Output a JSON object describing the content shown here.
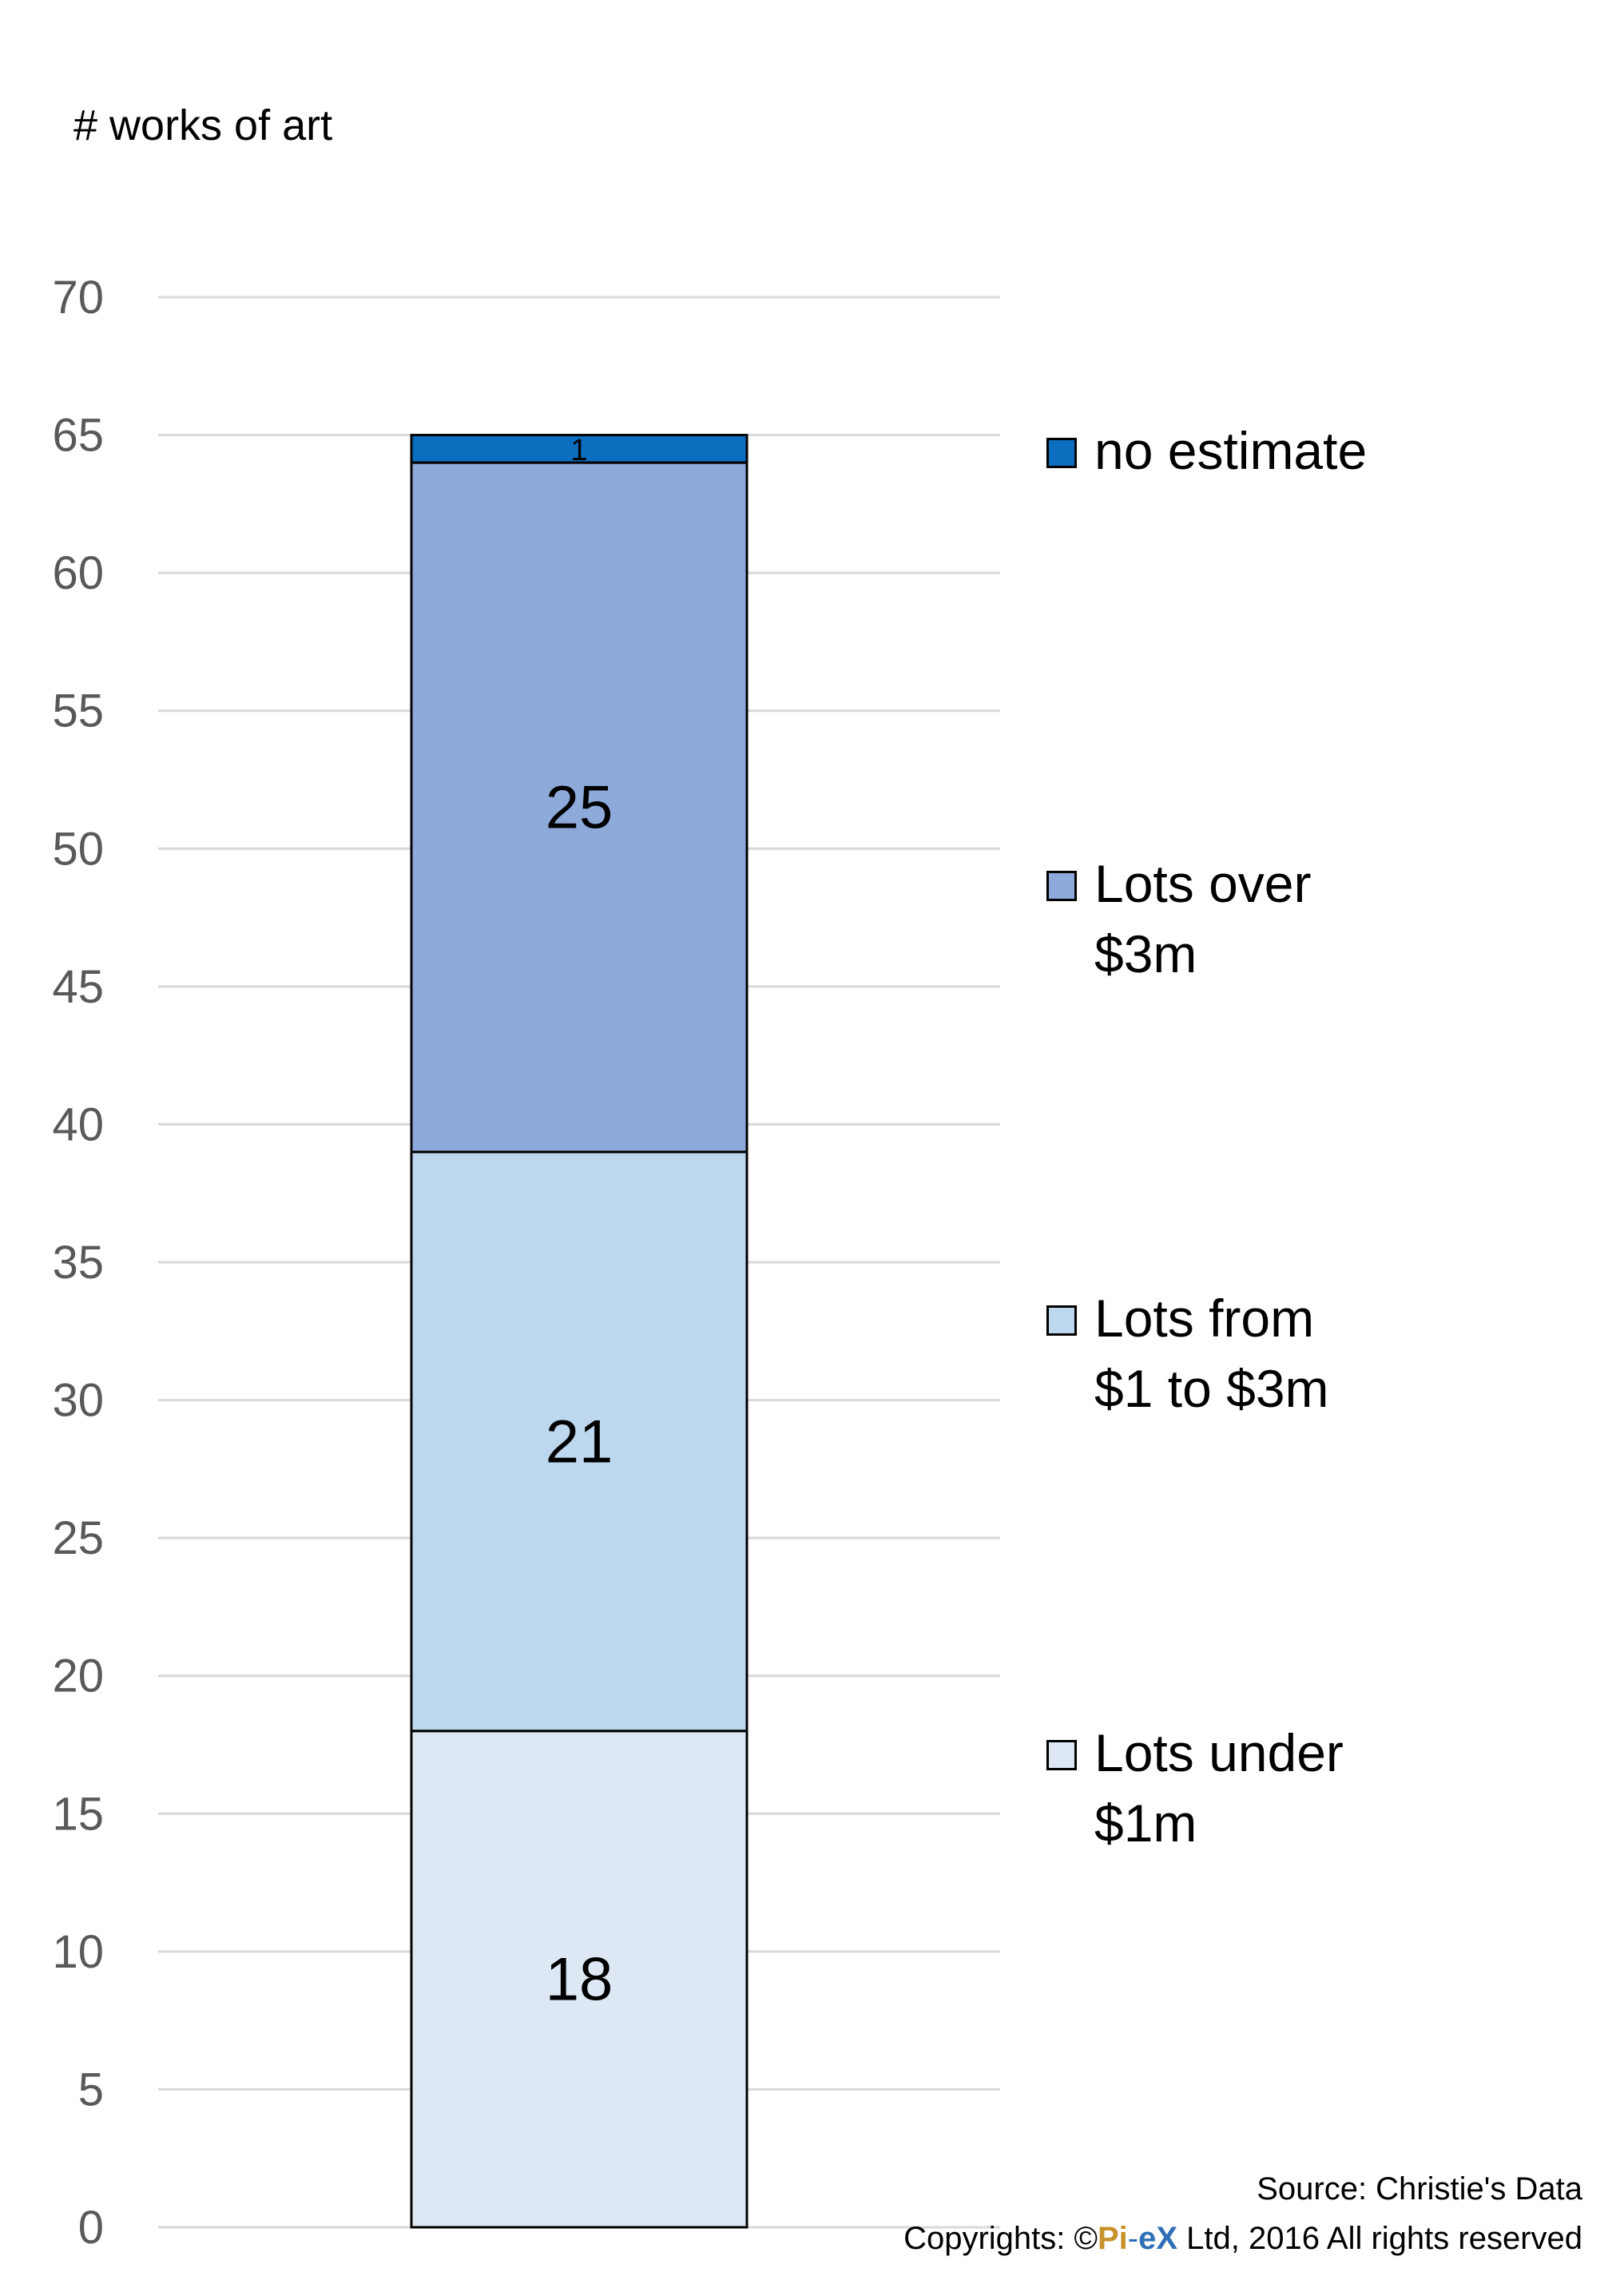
{
  "chart_data": {
    "type": "bar",
    "stacked": true,
    "categories": [
      ""
    ],
    "ylabel": "# works of art",
    "ylim": [
      0,
      70
    ],
    "yticks": [
      0,
      5,
      10,
      15,
      20,
      25,
      30,
      35,
      40,
      45,
      50,
      55,
      60,
      65,
      70
    ],
    "grid": true,
    "legend_position": "right",
    "series": [
      {
        "name": "Lots under $1m",
        "legend_lines": [
          "Lots under",
          "$1m"
        ],
        "values": [
          18
        ],
        "color": "#dde8f4"
      },
      {
        "name": "Lots from $1 to $3m",
        "legend_lines": [
          "Lots from",
          "$1 to $3m"
        ],
        "values": [
          21
        ],
        "color": "#bdd7ee"
      },
      {
        "name": "Lots over $3m",
        "legend_lines": [
          "Lots over",
          "$3m"
        ],
        "values": [
          25
        ],
        "color": "#8eaadb"
      },
      {
        "name": "no estimate",
        "legend_lines": [
          "no estimate"
        ],
        "values": [
          1
        ],
        "color": "#0b6ebf"
      }
    ]
  },
  "footer": {
    "source": "Source: Christie's Data",
    "copyright_prefix": "Copyrights: ©",
    "logo_pi": "Pi",
    "logo_dash": "-",
    "logo_ex": "eX",
    "copyright_suffix": " Ltd, 2016 All rights reserved"
  }
}
